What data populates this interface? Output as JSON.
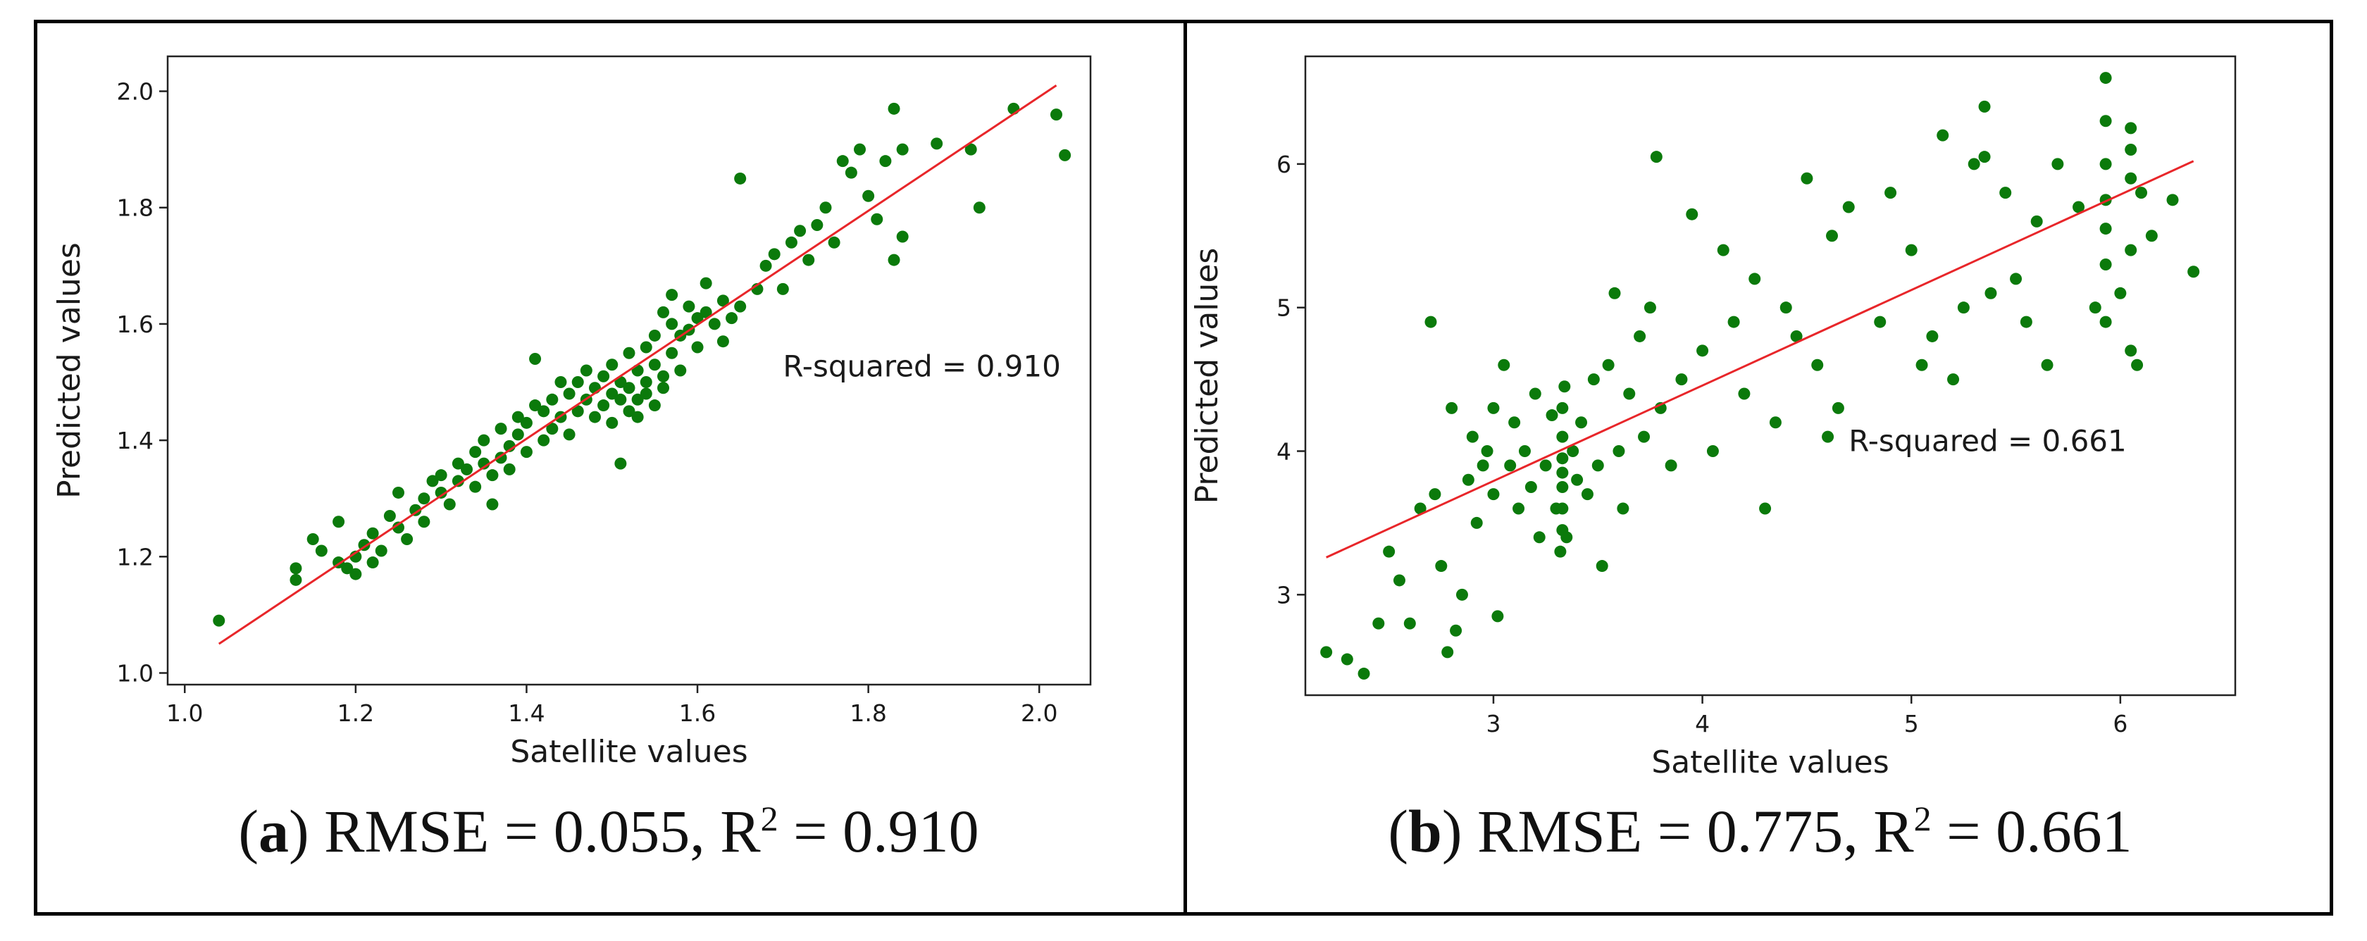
{
  "panels": [
    {
      "caption": {
        "letter": "a",
        "metric_text": "RMSE = 0.055, R",
        "sup": "2",
        "tail": " = 0.910"
      }
    },
    {
      "caption": {
        "letter": "b",
        "metric_text": "RMSE = 0.775, R",
        "sup": "2",
        "tail": " = 0.661"
      }
    }
  ],
  "colors": {
    "points": "#0b7a0b",
    "fit_line": "#e8262a",
    "frame": "#000000"
  },
  "chart_data": [
    {
      "type": "scatter",
      "title": "",
      "xlabel": "Satellite values",
      "ylabel": "Predicted values",
      "xlim": [
        0.98,
        2.06
      ],
      "ylim": [
        0.98,
        2.06
      ],
      "xticks": [
        "1.0",
        "1.2",
        "1.4",
        "1.6",
        "1.8",
        "2.0"
      ],
      "yticks": [
        "1.0",
        "1.2",
        "1.4",
        "1.6",
        "1.8",
        "2.0"
      ],
      "annotation": "R-squared = 0.910",
      "fit_line": {
        "x": [
          1.04,
          2.02
        ],
        "y": [
          1.05,
          2.01
        ]
      },
      "points": [
        [
          1.04,
          1.09
        ],
        [
          1.13,
          1.16
        ],
        [
          1.13,
          1.18
        ],
        [
          1.15,
          1.23
        ],
        [
          1.16,
          1.21
        ],
        [
          1.18,
          1.19
        ],
        [
          1.18,
          1.26
        ],
        [
          1.19,
          1.18
        ],
        [
          1.2,
          1.2
        ],
        [
          1.2,
          1.17
        ],
        [
          1.21,
          1.22
        ],
        [
          1.22,
          1.24
        ],
        [
          1.22,
          1.19
        ],
        [
          1.23,
          1.21
        ],
        [
          1.24,
          1.27
        ],
        [
          1.25,
          1.25
        ],
        [
          1.25,
          1.31
        ],
        [
          1.26,
          1.23
        ],
        [
          1.27,
          1.28
        ],
        [
          1.28,
          1.3
        ],
        [
          1.28,
          1.26
        ],
        [
          1.29,
          1.33
        ],
        [
          1.3,
          1.31
        ],
        [
          1.3,
          1.34
        ],
        [
          1.31,
          1.29
        ],
        [
          1.32,
          1.36
        ],
        [
          1.32,
          1.33
        ],
        [
          1.33,
          1.35
        ],
        [
          1.34,
          1.32
        ],
        [
          1.34,
          1.38
        ],
        [
          1.35,
          1.36
        ],
        [
          1.35,
          1.4
        ],
        [
          1.36,
          1.34
        ],
        [
          1.36,
          1.29
        ],
        [
          1.37,
          1.37
        ],
        [
          1.37,
          1.42
        ],
        [
          1.38,
          1.39
        ],
        [
          1.38,
          1.35
        ],
        [
          1.39,
          1.41
        ],
        [
          1.39,
          1.44
        ],
        [
          1.4,
          1.38
        ],
        [
          1.4,
          1.43
        ],
        [
          1.41,
          1.46
        ],
        [
          1.41,
          1.54
        ],
        [
          1.42,
          1.4
        ],
        [
          1.42,
          1.45
        ],
        [
          1.43,
          1.42
        ],
        [
          1.43,
          1.47
        ],
        [
          1.44,
          1.44
        ],
        [
          1.44,
          1.5
        ],
        [
          1.45,
          1.48
        ],
        [
          1.45,
          1.41
        ],
        [
          1.46,
          1.5
        ],
        [
          1.46,
          1.45
        ],
        [
          1.47,
          1.52
        ],
        [
          1.47,
          1.47
        ],
        [
          1.48,
          1.49
        ],
        [
          1.48,
          1.44
        ],
        [
          1.49,
          1.51
        ],
        [
          1.49,
          1.46
        ],
        [
          1.5,
          1.48
        ],
        [
          1.5,
          1.53
        ],
        [
          1.5,
          1.43
        ],
        [
          1.51,
          1.47
        ],
        [
          1.51,
          1.5
        ],
        [
          1.51,
          1.36
        ],
        [
          1.52,
          1.45
        ],
        [
          1.52,
          1.49
        ],
        [
          1.52,
          1.55
        ],
        [
          1.53,
          1.47
        ],
        [
          1.53,
          1.52
        ],
        [
          1.53,
          1.44
        ],
        [
          1.54,
          1.48
        ],
        [
          1.54,
          1.5
        ],
        [
          1.54,
          1.56
        ],
        [
          1.55,
          1.46
        ],
        [
          1.55,
          1.53
        ],
        [
          1.55,
          1.58
        ],
        [
          1.56,
          1.49
        ],
        [
          1.56,
          1.62
        ],
        [
          1.56,
          1.51
        ],
        [
          1.57,
          1.55
        ],
        [
          1.57,
          1.6
        ],
        [
          1.57,
          1.65
        ],
        [
          1.58,
          1.58
        ],
        [
          1.58,
          1.52
        ],
        [
          1.59,
          1.63
        ],
        [
          1.59,
          1.59
        ],
        [
          1.6,
          1.61
        ],
        [
          1.6,
          1.56
        ],
        [
          1.61,
          1.62
        ],
        [
          1.61,
          1.67
        ],
        [
          1.62,
          1.6
        ],
        [
          1.63,
          1.64
        ],
        [
          1.63,
          1.57
        ],
        [
          1.64,
          1.61
        ],
        [
          1.65,
          1.85
        ],
        [
          1.65,
          1.63
        ],
        [
          1.67,
          1.66
        ],
        [
          1.68,
          1.7
        ],
        [
          1.69,
          1.72
        ],
        [
          1.7,
          1.66
        ],
        [
          1.71,
          1.74
        ],
        [
          1.72,
          1.76
        ],
        [
          1.73,
          1.71
        ],
        [
          1.74,
          1.77
        ],
        [
          1.75,
          1.8
        ],
        [
          1.76,
          1.74
        ],
        [
          1.77,
          1.88
        ],
        [
          1.78,
          1.86
        ],
        [
          1.79,
          1.9
        ],
        [
          1.8,
          1.82
        ],
        [
          1.81,
          1.78
        ],
        [
          1.82,
          1.88
        ],
        [
          1.83,
          1.97
        ],
        [
          1.83,
          1.71
        ],
        [
          1.84,
          1.75
        ],
        [
          1.84,
          1.9
        ],
        [
          1.88,
          1.91
        ],
        [
          1.92,
          1.9
        ],
        [
          1.93,
          1.8
        ],
        [
          1.97,
          1.97
        ],
        [
          2.02,
          1.96
        ],
        [
          2.03,
          1.89
        ]
      ]
    },
    {
      "type": "scatter",
      "title": "",
      "xlabel": "Satellite values",
      "ylabel": "Predicted values",
      "xlim": [
        2.1,
        6.55
      ],
      "ylim": [
        2.3,
        6.75
      ],
      "xticks": [
        "3",
        "4",
        "5",
        "6"
      ],
      "yticks": [
        "3",
        "4",
        "5",
        "6"
      ],
      "annotation": "R-squared = 0.661",
      "fit_line": {
        "x": [
          2.2,
          6.35
        ],
        "y": [
          3.26,
          6.02
        ]
      },
      "points": [
        [
          2.2,
          2.6
        ],
        [
          2.3,
          2.55
        ],
        [
          2.38,
          2.45
        ],
        [
          2.45,
          2.8
        ],
        [
          2.5,
          3.3
        ],
        [
          2.55,
          3.1
        ],
        [
          2.6,
          2.8
        ],
        [
          2.65,
          3.6
        ],
        [
          2.7,
          4.9
        ],
        [
          2.72,
          3.7
        ],
        [
          2.75,
          3.2
        ],
        [
          2.78,
          2.6
        ],
        [
          2.8,
          4.3
        ],
        [
          2.82,
          2.75
        ],
        [
          2.85,
          3.0
        ],
        [
          2.88,
          3.8
        ],
        [
          2.9,
          4.1
        ],
        [
          2.92,
          3.5
        ],
        [
          2.95,
          3.9
        ],
        [
          2.97,
          4.0
        ],
        [
          3.0,
          3.7
        ],
        [
          3.0,
          4.3
        ],
        [
          3.02,
          2.85
        ],
        [
          3.05,
          4.6
        ],
        [
          3.08,
          3.9
        ],
        [
          3.1,
          4.2
        ],
        [
          3.12,
          3.6
        ],
        [
          3.15,
          4.0
        ],
        [
          3.18,
          3.75
        ],
        [
          3.2,
          4.4
        ],
        [
          3.22,
          3.4
        ],
        [
          3.25,
          3.9
        ],
        [
          3.28,
          4.25
        ],
        [
          3.3,
          3.6
        ],
        [
          3.32,
          3.3
        ],
        [
          3.33,
          3.45
        ],
        [
          3.33,
          3.6
        ],
        [
          3.33,
          3.75
        ],
        [
          3.33,
          3.85
        ],
        [
          3.33,
          3.95
        ],
        [
          3.33,
          4.1
        ],
        [
          3.33,
          4.3
        ],
        [
          3.34,
          4.45
        ],
        [
          3.35,
          3.4
        ],
        [
          3.38,
          4.0
        ],
        [
          3.4,
          3.8
        ],
        [
          3.42,
          4.2
        ],
        [
          3.45,
          3.7
        ],
        [
          3.48,
          4.5
        ],
        [
          3.5,
          3.9
        ],
        [
          3.52,
          3.2
        ],
        [
          3.55,
          4.6
        ],
        [
          3.58,
          5.1
        ],
        [
          3.6,
          4.0
        ],
        [
          3.62,
          3.6
        ],
        [
          3.65,
          4.4
        ],
        [
          3.7,
          4.8
        ],
        [
          3.72,
          4.1
        ],
        [
          3.75,
          5.0
        ],
        [
          3.78,
          6.05
        ],
        [
          3.8,
          4.3
        ],
        [
          3.85,
          3.9
        ],
        [
          3.9,
          4.5
        ],
        [
          3.95,
          5.65
        ],
        [
          4.0,
          4.7
        ],
        [
          4.05,
          4.0
        ],
        [
          4.1,
          5.4
        ],
        [
          4.15,
          4.9
        ],
        [
          4.2,
          4.4
        ],
        [
          4.25,
          5.2
        ],
        [
          4.3,
          3.6
        ],
        [
          4.35,
          4.2
        ],
        [
          4.4,
          5.0
        ],
        [
          4.45,
          4.8
        ],
        [
          4.5,
          5.9
        ],
        [
          4.55,
          4.6
        ],
        [
          4.6,
          4.1
        ],
        [
          4.62,
          5.5
        ],
        [
          4.65,
          4.3
        ],
        [
          4.7,
          5.7
        ],
        [
          4.85,
          4.9
        ],
        [
          4.9,
          5.8
        ],
        [
          5.0,
          5.4
        ],
        [
          5.05,
          4.6
        ],
        [
          5.1,
          4.8
        ],
        [
          5.15,
          6.2
        ],
        [
          5.2,
          4.5
        ],
        [
          5.25,
          5.0
        ],
        [
          5.3,
          6.0
        ],
        [
          5.35,
          6.4
        ],
        [
          5.35,
          6.05
        ],
        [
          5.38,
          5.1
        ],
        [
          5.45,
          5.8
        ],
        [
          5.5,
          5.2
        ],
        [
          5.55,
          4.9
        ],
        [
          5.6,
          5.6
        ],
        [
          5.65,
          4.6
        ],
        [
          5.7,
          6.0
        ],
        [
          5.8,
          5.7
        ],
        [
          5.88,
          5.0
        ],
        [
          5.93,
          4.9
        ],
        [
          5.93,
          5.3
        ],
        [
          5.93,
          5.55
        ],
        [
          5.93,
          5.75
        ],
        [
          5.93,
          6.0
        ],
        [
          5.93,
          6.3
        ],
        [
          5.93,
          6.6
        ],
        [
          6.0,
          5.1
        ],
        [
          6.05,
          4.7
        ],
        [
          6.05,
          5.4
        ],
        [
          6.05,
          5.9
        ],
        [
          6.05,
          6.1
        ],
        [
          6.05,
          6.25
        ],
        [
          6.08,
          4.6
        ],
        [
          6.1,
          5.8
        ],
        [
          6.15,
          5.5
        ],
        [
          6.25,
          5.75
        ],
        [
          6.35,
          5.25
        ]
      ]
    }
  ]
}
